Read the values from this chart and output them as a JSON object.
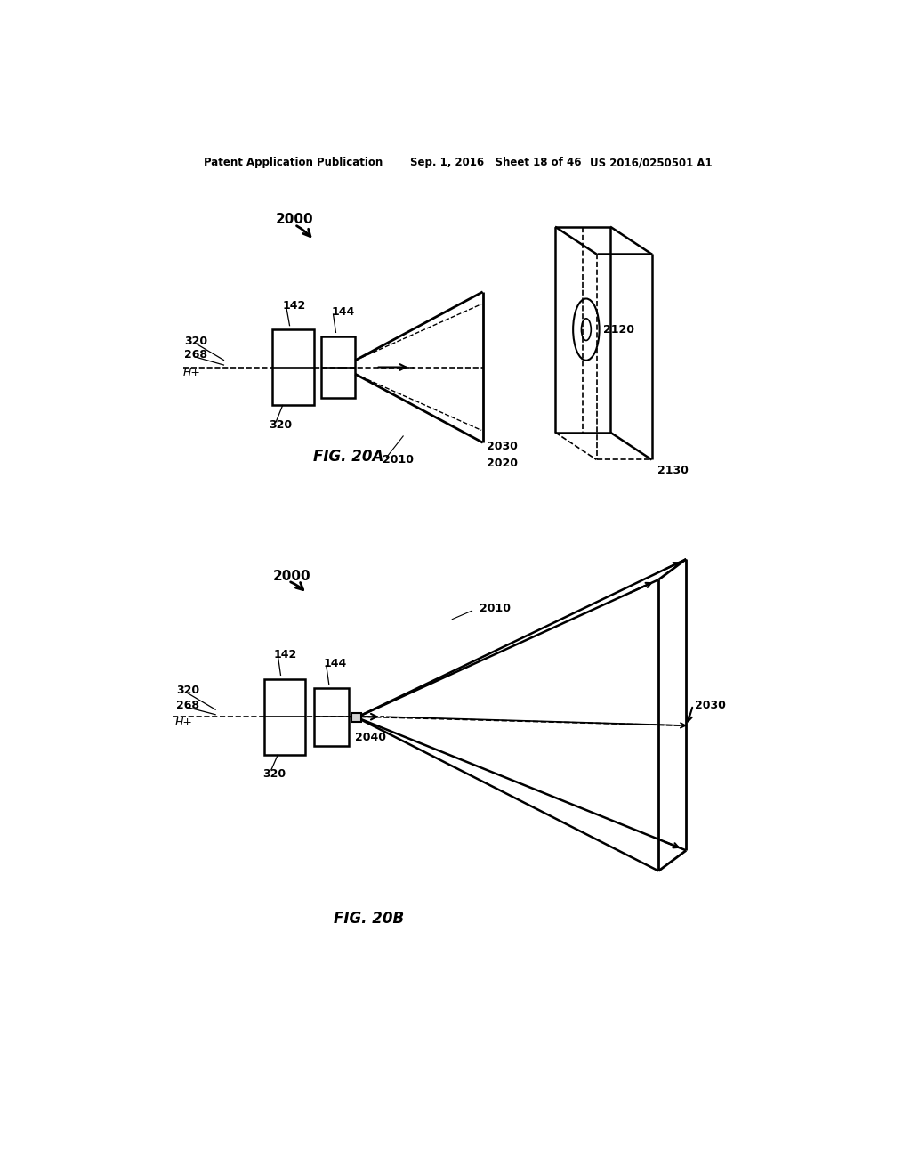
{
  "background_color": "#ffffff",
  "line_color": "#000000",
  "header_text_left": "Patent Application Publication",
  "header_text_mid": "Sep. 1, 2016   Sheet 18 of 46",
  "header_text_right": "US 2016/0250501 A1",
  "fig20a_label": "FIG. 20A",
  "fig20b_label": "FIG. 20B",
  "label_2000a": "2000",
  "label_2000b": "2000",
  "label_142a": "142",
  "label_144a": "144",
  "label_320a_top": "320",
  "label_320a_bot": "320",
  "label_268a": "268",
  "label_Hp_a": "H+",
  "label_2010a": "2010",
  "label_2020a": "2020",
  "label_2030a": "2030",
  "label_2120": "2120",
  "label_2130": "2130",
  "label_142b": "142",
  "label_144b": "144",
  "label_320b_top": "320",
  "label_320b_bot": "320",
  "label_268b": "268",
  "label_Hp_b": "H+",
  "label_2010b": "2010",
  "label_2030b": "2030",
  "label_2040b": "2040"
}
